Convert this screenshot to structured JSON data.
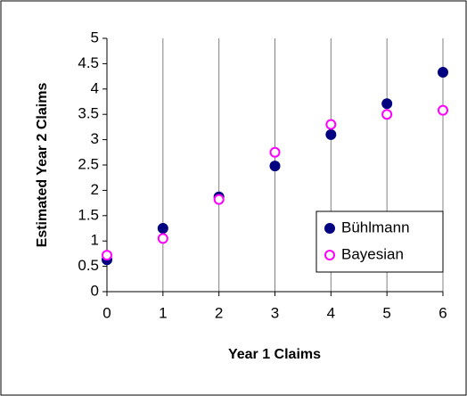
{
  "chart_data": {
    "type": "scatter",
    "xlabel": "Year 1 Claims",
    "ylabel": "Estimated Year 2 Claims",
    "x": [
      0,
      1,
      2,
      3,
      4,
      5,
      6
    ],
    "series": [
      {
        "name": "Bühlmann",
        "color": "#000080",
        "marker": "filled",
        "values": [
          0.63,
          1.25,
          1.87,
          2.48,
          3.1,
          3.71,
          4.33
        ]
      },
      {
        "name": "Bayesian",
        "color": "#ff00ff",
        "marker": "open",
        "values": [
          0.72,
          1.05,
          1.82,
          2.75,
          3.3,
          3.5,
          3.58
        ]
      }
    ],
    "xlim": [
      0,
      6
    ],
    "xticks": [
      0,
      1,
      2,
      3,
      4,
      5,
      6
    ],
    "ylim": [
      0,
      5
    ],
    "yticks": [
      0,
      0.5,
      1,
      1.5,
      2,
      2.5,
      3,
      3.5,
      4,
      4.5,
      5
    ],
    "grid": "x",
    "legend": "lower right"
  }
}
